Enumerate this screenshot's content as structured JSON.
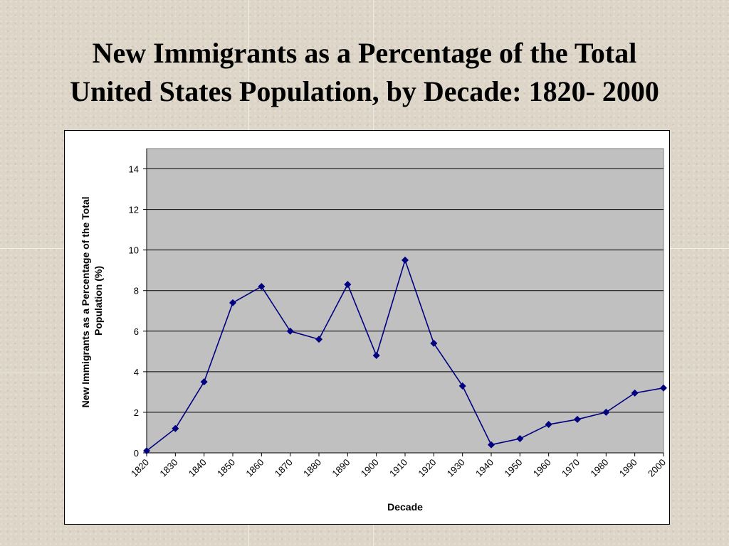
{
  "slide": {
    "title_line1": "New Immigrants as a Percentage of the Total",
    "title_line2": "United States Population, by Decade: 1820- 2000"
  },
  "chart_data": {
    "type": "line",
    "x": [
      "1820",
      "1830",
      "1840",
      "1850",
      "1860",
      "1870",
      "1880",
      "1890",
      "1900",
      "1910",
      "1920",
      "1930",
      "1940",
      "1950",
      "1960",
      "1970",
      "1980",
      "1990",
      "2000"
    ],
    "series": [
      {
        "values": [
          0.1,
          1.2,
          3.5,
          7.4,
          8.2,
          6.0,
          5.6,
          8.3,
          4.8,
          9.5,
          5.4,
          3.3,
          0.4,
          0.7,
          1.4,
          1.65,
          2.0,
          2.95,
          3.2
        ],
        "color": "#000080"
      }
    ],
    "xlabel": "Decade",
    "ylabel_line1": "New Immigrants as a Percentage of the Total",
    "ylabel_line2": "Population (%)",
    "ylim": [
      0,
      15
    ],
    "yticks": [
      "0",
      "2",
      "4",
      "6",
      "8",
      "10",
      "12",
      "14"
    ],
    "plot_background": "#c0c0c0",
    "grid": true,
    "marker": "diamond"
  }
}
